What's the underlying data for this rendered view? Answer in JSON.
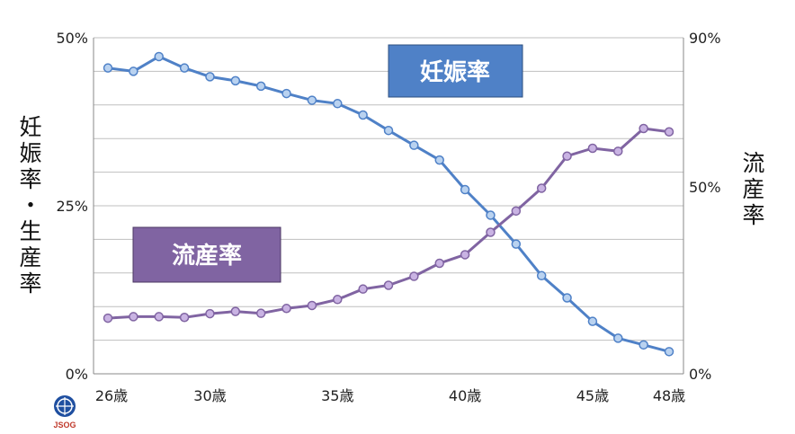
{
  "chart_data": {
    "type": "line",
    "x_tick_labels": [
      "26歳",
      "30歳",
      "35歳",
      "40歳",
      "45歳",
      "48歳"
    ],
    "x": [
      26,
      27,
      28,
      29,
      30,
      31,
      32,
      33,
      34,
      35,
      36,
      37,
      38,
      39,
      40,
      41,
      42,
      43,
      44,
      45,
      46,
      47,
      48
    ],
    "series": [
      {
        "name": "妊娠率",
        "axis": "left",
        "color": "#4f81c7",
        "values": [
          45.5,
          45.0,
          47.2,
          45.5,
          44.2,
          43.6,
          42.8,
          41.7,
          40.7,
          40.2,
          38.5,
          36.2,
          34.0,
          31.8,
          27.4,
          23.6,
          19.3,
          14.6,
          11.3,
          7.8,
          5.3,
          4.3,
          3.3
        ]
      },
      {
        "name": "流産率",
        "axis": "right",
        "color": "#8064a2",
        "values": [
          14.9,
          15.3,
          15.3,
          15.1,
          16.1,
          16.7,
          16.2,
          17.5,
          18.3,
          19.9,
          22.7,
          23.7,
          26.1,
          29.6,
          31.9,
          37.9,
          43.6,
          49.7,
          58.3,
          60.4,
          59.6,
          65.7,
          64.8
        ]
      }
    ],
    "left_axis": {
      "ticks": [
        "0%",
        "25%",
        "50%"
      ],
      "range": [
        0,
        50
      ]
    },
    "right_axis": {
      "ticks": [
        "0%",
        "50%",
        "90%"
      ],
      "range": [
        0,
        90
      ]
    },
    "ylabel_left": "妊娠率・生産率",
    "ylabel_right": "流産率",
    "grid": true
  },
  "legend": {
    "pregnancy_label": "妊娠率",
    "pregnancy_color": "#4f81c7",
    "miscarriage_label": "流産率",
    "miscarriage_color": "#8064a2"
  },
  "logo": {
    "text": "JSOG"
  }
}
